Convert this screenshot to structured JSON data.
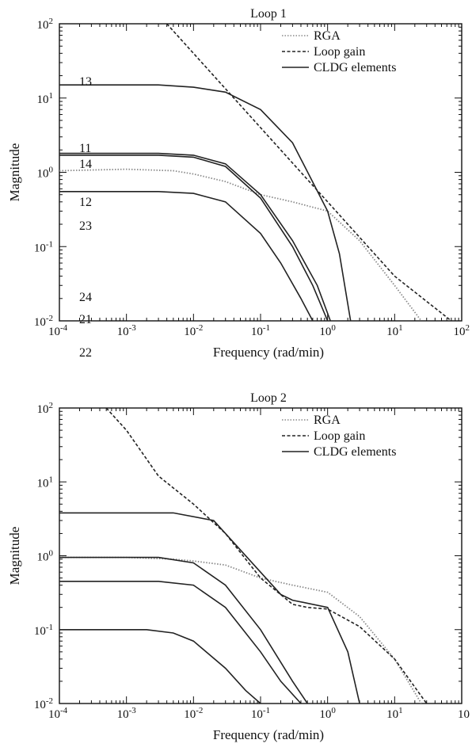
{
  "chart_data": [
    {
      "type": "line",
      "title": "Loop 1",
      "xlabel": "Frequency (rad/min)",
      "ylabel": "Magnitude",
      "xscale": "log",
      "yscale": "log",
      "xlim": [
        0.0001,
        100
      ],
      "ylim": [
        0.01,
        100
      ],
      "x_tick_labels": [
        "10-4",
        "10-3",
        "10-2",
        "10-1",
        "100",
        "101",
        "102"
      ],
      "y_tick_labels": [
        "10-2",
        "10-1",
        "100",
        "101",
        "102"
      ],
      "grid": false,
      "legend_position": "top-right",
      "legend": [
        {
          "label": "RGA",
          "style": "dotted"
        },
        {
          "label": "Loop gain",
          "style": "dashed"
        },
        {
          "label": "CLDG elements",
          "style": "solid"
        }
      ],
      "series": [
        {
          "name": "RGA",
          "style": "dotted",
          "color": "#8a8a8a",
          "x": [
            0.0001,
            0.001,
            0.005,
            0.01,
            0.03,
            0.1,
            0.3,
            1,
            3,
            10,
            25
          ],
          "y": [
            1.05,
            1.1,
            1.05,
            0.95,
            0.75,
            0.5,
            0.4,
            0.3,
            0.12,
            0.03,
            0.01
          ]
        },
        {
          "name": "Loop gain",
          "style": "dashed",
          "color": "#222222",
          "x": [
            0.004,
            0.01,
            0.1,
            1,
            10,
            70
          ],
          "y": [
            100,
            40,
            4,
            0.4,
            0.04,
            0.01
          ]
        },
        {
          "label": "13",
          "style": "solid",
          "color": "#222222",
          "x": [
            0.0001,
            0.003,
            0.01,
            0.03,
            0.1,
            0.3,
            1,
            1.5,
            2.2
          ],
          "y": [
            15,
            15,
            14,
            12,
            7,
            2.5,
            0.3,
            0.08,
            0.01
          ]
        },
        {
          "label": "11",
          "style": "solid",
          "color": "#222222",
          "x": [
            0.0001,
            0.003,
            0.01,
            0.03,
            0.1,
            0.3,
            0.7,
            1.1
          ],
          "y": [
            1.8,
            1.8,
            1.7,
            1.3,
            0.5,
            0.12,
            0.03,
            0.01
          ]
        },
        {
          "label": "14",
          "style": "solid",
          "color": "#222222",
          "x": [
            0.0001,
            0.003,
            0.01,
            0.03,
            0.1,
            0.3,
            0.6,
            1.0
          ],
          "y": [
            1.7,
            1.7,
            1.6,
            1.2,
            0.45,
            0.1,
            0.03,
            0.01
          ]
        },
        {
          "label": "12",
          "style": "solid",
          "color": "#222222",
          "x": [
            0.0001,
            0.003,
            0.01,
            0.03,
            0.1,
            0.2,
            0.4,
            0.6
          ],
          "y": [
            0.55,
            0.55,
            0.52,
            0.4,
            0.15,
            0.06,
            0.02,
            0.01
          ]
        }
      ],
      "curve_labels": [
        "13",
        "11",
        "14",
        "12"
      ]
    },
    {
      "type": "line",
      "title": "Loop 2",
      "xlabel": "Frequency (rad/min)",
      "ylabel": "Magnitude",
      "xscale": "log",
      "yscale": "log",
      "xlim": [
        0.0001,
        100
      ],
      "ylim": [
        0.01,
        100
      ],
      "x_tick_labels": [
        "10-4",
        "10-3",
        "10-2",
        "10-1",
        "100",
        "101",
        "10"
      ],
      "y_tick_labels": [
        "10-2",
        "10-1",
        "100",
        "101",
        "102"
      ],
      "grid": false,
      "legend_position": "top-right",
      "legend": [
        {
          "label": "RGA",
          "style": "dotted"
        },
        {
          "label": "Loop gain",
          "style": "dashed"
        },
        {
          "label": "CLDG elements",
          "style": "solid"
        }
      ],
      "series": [
        {
          "name": "RGA",
          "style": "dotted",
          "color": "#8a8a8a",
          "x": [
            0.0001,
            0.001,
            0.005,
            0.01,
            0.03,
            0.1,
            0.3,
            1,
            3,
            10,
            25
          ],
          "y": [
            0.95,
            0.95,
            0.9,
            0.85,
            0.75,
            0.5,
            0.4,
            0.32,
            0.15,
            0.04,
            0.01
          ]
        },
        {
          "name": "Loop gain",
          "style": "dashed",
          "color": "#222222",
          "x": [
            0.0005,
            0.001,
            0.003,
            0.01,
            0.03,
            0.1,
            0.3,
            0.5,
            1,
            3,
            10,
            30
          ],
          "y": [
            100,
            50,
            12,
            5,
            2,
            0.5,
            0.22,
            0.2,
            0.19,
            0.11,
            0.04,
            0.01
          ]
        },
        {
          "label": "23",
          "style": "solid",
          "color": "#222222",
          "x": [
            0.0001,
            0.005,
            0.02,
            0.1,
            0.2,
            0.3,
            1,
            2,
            3
          ],
          "y": [
            3.8,
            3.8,
            3,
            0.6,
            0.3,
            0.25,
            0.2,
            0.05,
            0.01
          ]
        },
        {
          "label": "24",
          "style": "solid",
          "color": "#222222",
          "x": [
            0.0001,
            0.003,
            0.01,
            0.03,
            0.1,
            0.3,
            0.5
          ],
          "y": [
            0.95,
            0.95,
            0.8,
            0.4,
            0.1,
            0.02,
            0.01
          ]
        },
        {
          "label": "21",
          "style": "solid",
          "color": "#222222",
          "x": [
            0.0001,
            0.003,
            0.01,
            0.03,
            0.1,
            0.2,
            0.4
          ],
          "y": [
            0.45,
            0.45,
            0.4,
            0.2,
            0.05,
            0.02,
            0.01
          ]
        },
        {
          "label": "22",
          "style": "solid",
          "color": "#222222",
          "x": [
            0.0001,
            0.002,
            0.005,
            0.01,
            0.03,
            0.06,
            0.1
          ],
          "y": [
            0.1,
            0.1,
            0.09,
            0.07,
            0.03,
            0.015,
            0.01
          ]
        }
      ],
      "curve_labels": [
        "23",
        "24",
        "21",
        "22"
      ]
    }
  ]
}
